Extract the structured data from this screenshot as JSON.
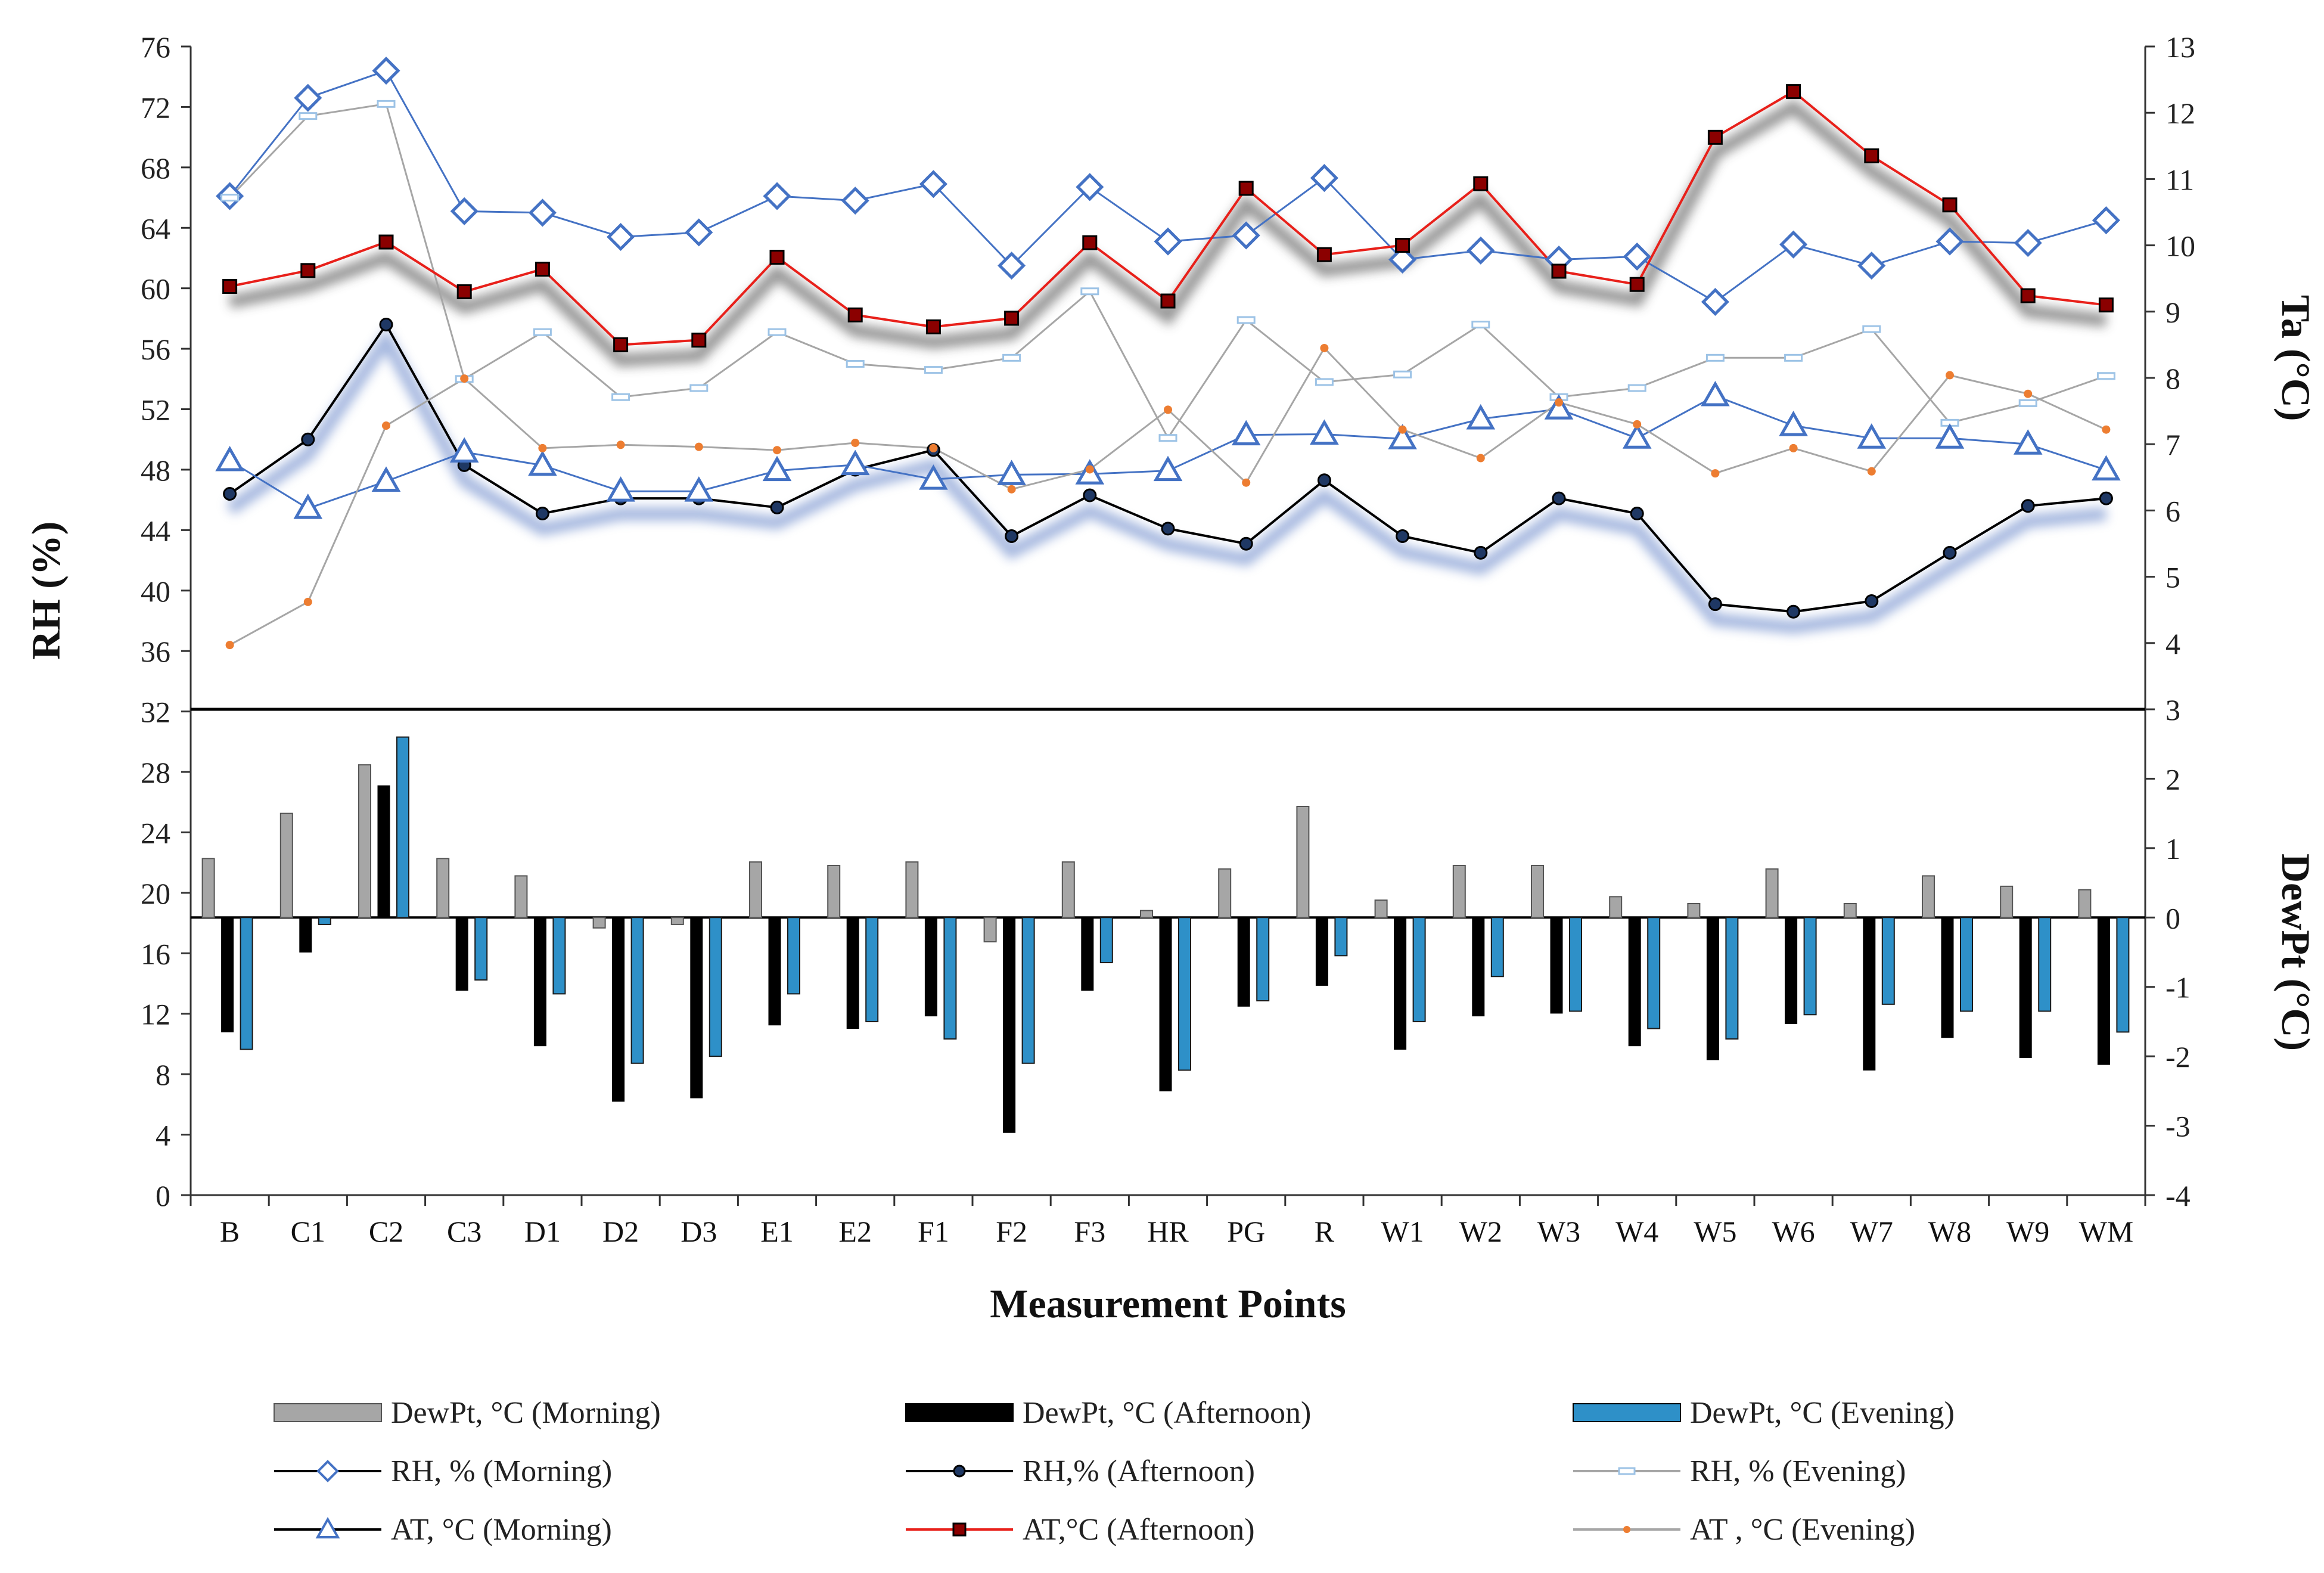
{
  "chart_data": {
    "type": "line",
    "categories": [
      "B",
      "C1",
      "C2",
      "C3",
      "D1",
      "D2",
      "D3",
      "E1",
      "E2",
      "F1",
      "F2",
      "F3",
      "HR",
      "PG",
      "R",
      "W1",
      "W2",
      "W3",
      "W4",
      "W5",
      "W6",
      "W7",
      "W8",
      "W9",
      "WM"
    ],
    "xlabel": "Measurement Points",
    "y_left_label": "RH (%)",
    "y_right_top_label": "Ta (°C)",
    "y_right_bottom_label": "DewPt (°C)",
    "rh_axis": {
      "min": 0,
      "max": 76,
      "step": 4,
      "ticks": [
        "0",
        "4",
        "8",
        "12",
        "16",
        "20",
        "24",
        "28",
        "32",
        "36",
        "40",
        "44",
        "48",
        "52",
        "56",
        "60",
        "64",
        "68",
        "72",
        "76"
      ]
    },
    "ta_axis": {
      "min": 3,
      "max": 13,
      "step": 1,
      "ticks": [
        "3",
        "4",
        "5",
        "6",
        "7",
        "8",
        "9",
        "10",
        "11",
        "12",
        "13"
      ]
    },
    "dewpt_axis": {
      "min": -4,
      "max": 3,
      "step": 1,
      "ticks": [
        "-4",
        "-3",
        "-2",
        "-1",
        "0",
        "1",
        "2",
        "3"
      ]
    },
    "rh_series": [
      {
        "name": "RH, % (Morning)",
        "color": "#4472c4",
        "marker": "diamond",
        "values": [
          66.1,
          72.6,
          74.4,
          65.1,
          65.0,
          63.4,
          63.7,
          66.1,
          65.8,
          66.9,
          61.5,
          66.7,
          63.1,
          63.5,
          67.3,
          61.9,
          62.5,
          61.9,
          62.1,
          59.1,
          62.9,
          61.5,
          63.1,
          63.0,
          64.5
        ]
      },
      {
        "name": "RH,% (Afternoon)",
        "color": "#000000",
        "marker": "circle",
        "values": [
          46.4,
          50.0,
          57.6,
          48.3,
          45.1,
          46.1,
          46.1,
          45.5,
          48.0,
          49.3,
          43.6,
          46.3,
          44.1,
          43.1,
          47.3,
          43.6,
          42.5,
          46.1,
          45.1,
          39.1,
          38.6,
          39.3,
          42.5,
          45.6,
          46.1
        ]
      },
      {
        "name": "RH, % (Evening)",
        "color": "#a6a6a6",
        "marker": "dash",
        "values": [
          66.0,
          71.4,
          72.2,
          54.0,
          57.1,
          52.8,
          53.4,
          57.1,
          55.0,
          54.6,
          55.4,
          59.8,
          50.1,
          57.9,
          53.8,
          54.3,
          57.6,
          52.8,
          53.4,
          55.4,
          55.4,
          57.3,
          51.1,
          52.4,
          54.2
        ]
      }
    ],
    "ta_series": [
      {
        "name": "AT, °C (Morning)",
        "color": "#4472c4",
        "marker": "triangle",
        "values": [
          6.75,
          6.03,
          6.44,
          6.88,
          6.68,
          6.29,
          6.29,
          6.6,
          6.69,
          6.47,
          6.54,
          6.55,
          6.6,
          7.14,
          7.15,
          7.08,
          7.38,
          7.53,
          7.09,
          7.73,
          7.28,
          7.09,
          7.09,
          7.0,
          6.61
        ]
      },
      {
        "name": "AT,°C (Afternoon)",
        "color": "#e8201a",
        "marker": "square",
        "values": [
          9.38,
          9.62,
          10.05,
          9.3,
          9.64,
          8.5,
          8.57,
          9.82,
          8.95,
          8.77,
          8.9,
          10.04,
          9.16,
          10.86,
          9.86,
          10.0,
          10.93,
          9.61,
          9.41,
          11.63,
          12.32,
          11.35,
          10.61,
          9.24,
          9.1
        ]
      },
      {
        "name": "AT , °C (Evening)",
        "color": "#a6a6a6",
        "marker": "dot",
        "values": [
          3.97,
          4.62,
          7.28,
          7.99,
          6.94,
          6.99,
          6.96,
          6.91,
          7.02,
          6.94,
          6.32,
          6.62,
          7.52,
          6.42,
          8.45,
          7.22,
          6.79,
          7.63,
          7.3,
          6.56,
          6.94,
          6.59,
          8.04,
          7.76,
          7.22
        ]
      }
    ],
    "dewpt_series": [
      {
        "name": "DewPt, °C (Morning)",
        "color": "#a6a6a6",
        "values": [
          0.85,
          1.5,
          2.2,
          0.85,
          0.6,
          -0.15,
          -0.1,
          0.8,
          0.75,
          0.8,
          -0.35,
          0.8,
          0.1,
          0.7,
          1.6,
          0.25,
          0.75,
          0.75,
          0.3,
          0.2,
          0.7,
          0.2,
          0.6,
          0.45,
          0.4
        ]
      },
      {
        "name": "DewPt, °C (Afternoon)",
        "color": "#000000",
        "values": [
          -1.65,
          -0.5,
          1.9,
          -1.05,
          -1.85,
          -2.65,
          -2.6,
          -1.55,
          -1.6,
          -1.42,
          -3.1,
          -1.05,
          -2.5,
          -1.28,
          -0.98,
          -1.9,
          -1.42,
          -1.38,
          -1.85,
          -2.05,
          -1.53,
          -2.2,
          -1.73,
          -2.02,
          -2.12
        ]
      },
      {
        "name": "DewPt, °C (Evening)",
        "color": "#2e90c8",
        "values": [
          -1.9,
          -0.1,
          2.6,
          -0.9,
          -1.1,
          -2.1,
          -2.0,
          -1.1,
          -1.5,
          -1.75,
          -2.1,
          -0.65,
          -2.2,
          -1.2,
          -0.55,
          -1.5,
          -0.85,
          -1.35,
          -1.6,
          -1.75,
          -1.4,
          -1.25,
          -1.35,
          -1.35,
          -1.65
        ]
      }
    ],
    "legend": [
      [
        "DewPt, °C (Morning)",
        "DewPt, °C (Afternoon)",
        "DewPt, °C (Evening)"
      ],
      [
        "RH, % (Morning)",
        "RH,% (Afternoon)",
        "RH, % (Evening)"
      ],
      [
        "AT, °C (Morning)",
        "AT,°C (Afternoon)",
        "AT , °C (Evening)"
      ]
    ],
    "legend_position": "bottom",
    "grid": false
  }
}
